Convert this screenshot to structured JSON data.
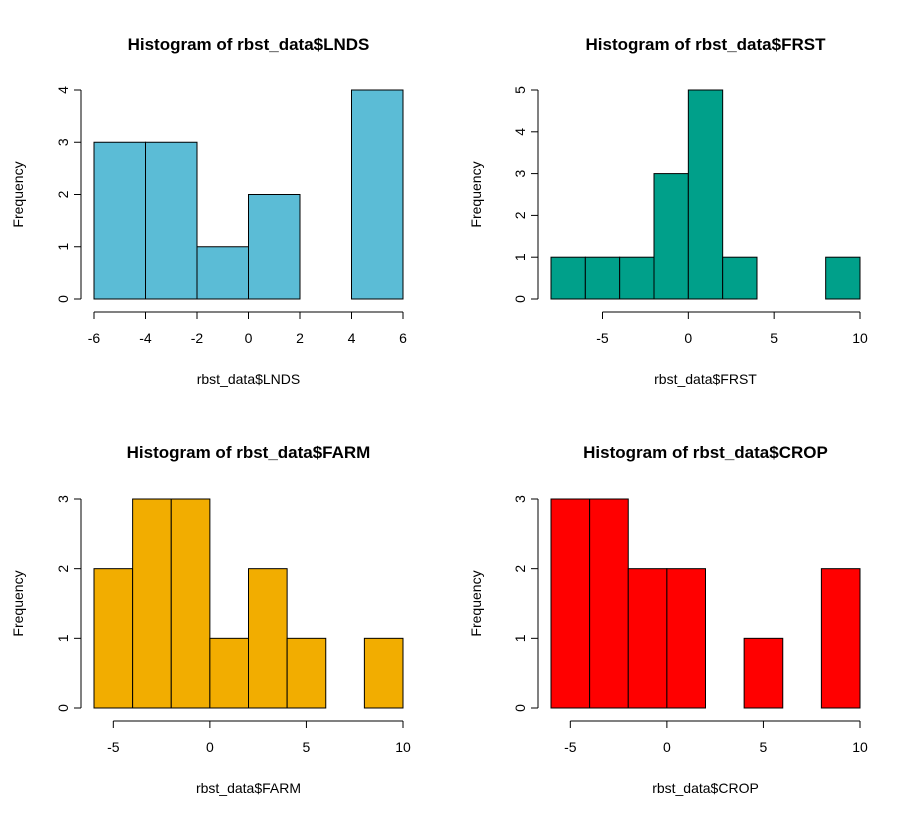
{
  "chart_data": [
    {
      "type": "bar",
      "title": "Histogram of rbst_data$LNDS",
      "xlabel": "rbst_data$LNDS",
      "ylabel": "Frequency",
      "color": "#5bbcd6",
      "bin_edges": [
        -6,
        -4,
        -2,
        0,
        2,
        4,
        6
      ],
      "values": [
        3,
        3,
        1,
        2,
        0,
        4
      ],
      "xticks": [
        -6,
        -4,
        -2,
        0,
        2,
        4,
        6
      ],
      "yticks": [
        0,
        1,
        2,
        3,
        4
      ],
      "xlim": [
        -6,
        6
      ],
      "ylim": [
        0,
        4
      ]
    },
    {
      "type": "bar",
      "title": "Histogram of rbst_data$FRST",
      "xlabel": "rbst_data$FRST",
      "ylabel": "Frequency",
      "color": "#00a08a",
      "bin_edges": [
        -8,
        -6,
        -4,
        -2,
        0,
        2,
        4,
        6,
        8,
        10
      ],
      "values": [
        1,
        1,
        1,
        3,
        5,
        1,
        0,
        0,
        1
      ],
      "xticks": [
        -5,
        0,
        5,
        10
      ],
      "yticks": [
        0,
        1,
        2,
        3,
        4,
        5
      ],
      "xlim": [
        -8,
        10
      ],
      "ylim": [
        0,
        5
      ]
    },
    {
      "type": "bar",
      "title": "Histogram of rbst_data$FARM",
      "xlabel": "rbst_data$FARM",
      "ylabel": "Frequency",
      "color": "#f2ad00",
      "bin_edges": [
        -6,
        -4,
        -2,
        0,
        2,
        4,
        6,
        8,
        10
      ],
      "values": [
        2,
        3,
        3,
        1,
        2,
        1,
        0,
        1
      ],
      "xticks": [
        -5,
        0,
        5,
        10
      ],
      "yticks": [
        0,
        1,
        2,
        3
      ],
      "xlim": [
        -6,
        10
      ],
      "ylim": [
        0,
        3
      ]
    },
    {
      "type": "bar",
      "title": "Histogram of rbst_data$CROP",
      "xlabel": "rbst_data$CROP",
      "ylabel": "Frequency",
      "color": "#ff0000",
      "bin_edges": [
        -6,
        -4,
        -2,
        0,
        2,
        4,
        6,
        8,
        10
      ],
      "values": [
        3,
        3,
        2,
        2,
        0,
        1,
        0,
        2
      ],
      "xticks": [
        -5,
        0,
        5,
        10
      ],
      "yticks": [
        0,
        1,
        2,
        3
      ],
      "xlim": [
        -6,
        10
      ],
      "ylim": [
        0,
        3
      ]
    }
  ]
}
